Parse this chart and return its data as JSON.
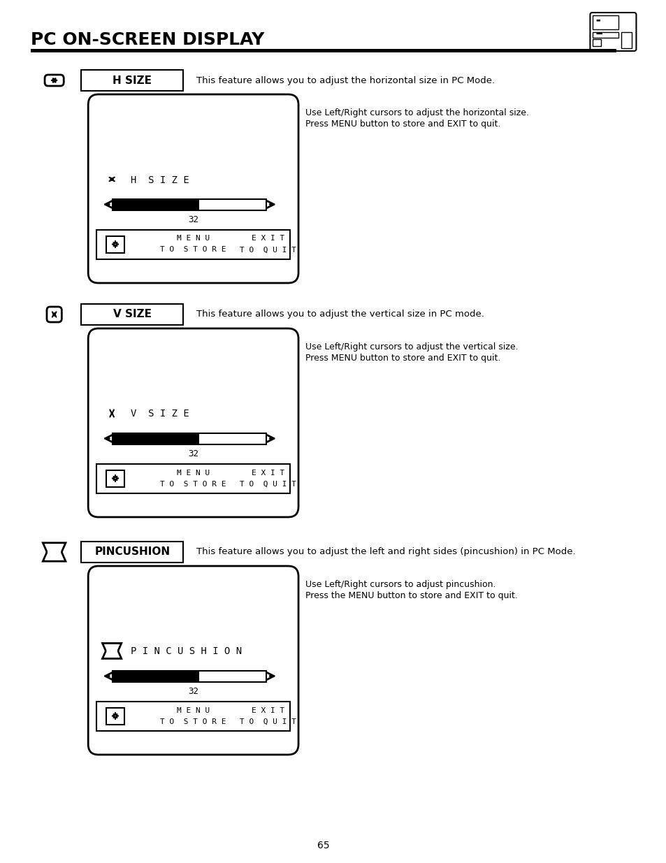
{
  "title": "PC ON-SCREEN DISPLAY",
  "bg_color": "#ffffff",
  "text_color": "#000000",
  "page_number": "65",
  "sections": [
    {
      "icon_type": "h_arrow",
      "label": "H SIZE",
      "description": "This feature allows you to adjust the horizontal size in PC Mode.",
      "help_line1": "Use Left/Right cursors to adjust the horizontal size.",
      "help_line2": "Press MENU button to store and EXIT to quit.",
      "screen_label": "H  S I Z E",
      "screen_icon": "h_arrow",
      "value": "32"
    },
    {
      "icon_type": "v_arrow",
      "label": "V SIZE",
      "description": "This feature allows you to adjust the vertical size in PC mode.",
      "help_line1": "Use Left/Right cursors to adjust the vertical size.",
      "help_line2": "Press MENU button to store and EXIT to quit.",
      "screen_label": "V  S I Z E",
      "screen_icon": "v_arrow",
      "value": "32"
    },
    {
      "icon_type": "pincushion",
      "label": "PINCUSHION",
      "description": "This feature allows you to adjust the left and right sides (pincushion) in PC Mode.",
      "help_line1": "Use Left/Right cursors to adjust pincushion.",
      "help_line2": "Press the MENU button to store and EXIT to quit.",
      "screen_label": "P I N C U S H I O N",
      "screen_icon": "pincushion",
      "value": "32"
    }
  ]
}
